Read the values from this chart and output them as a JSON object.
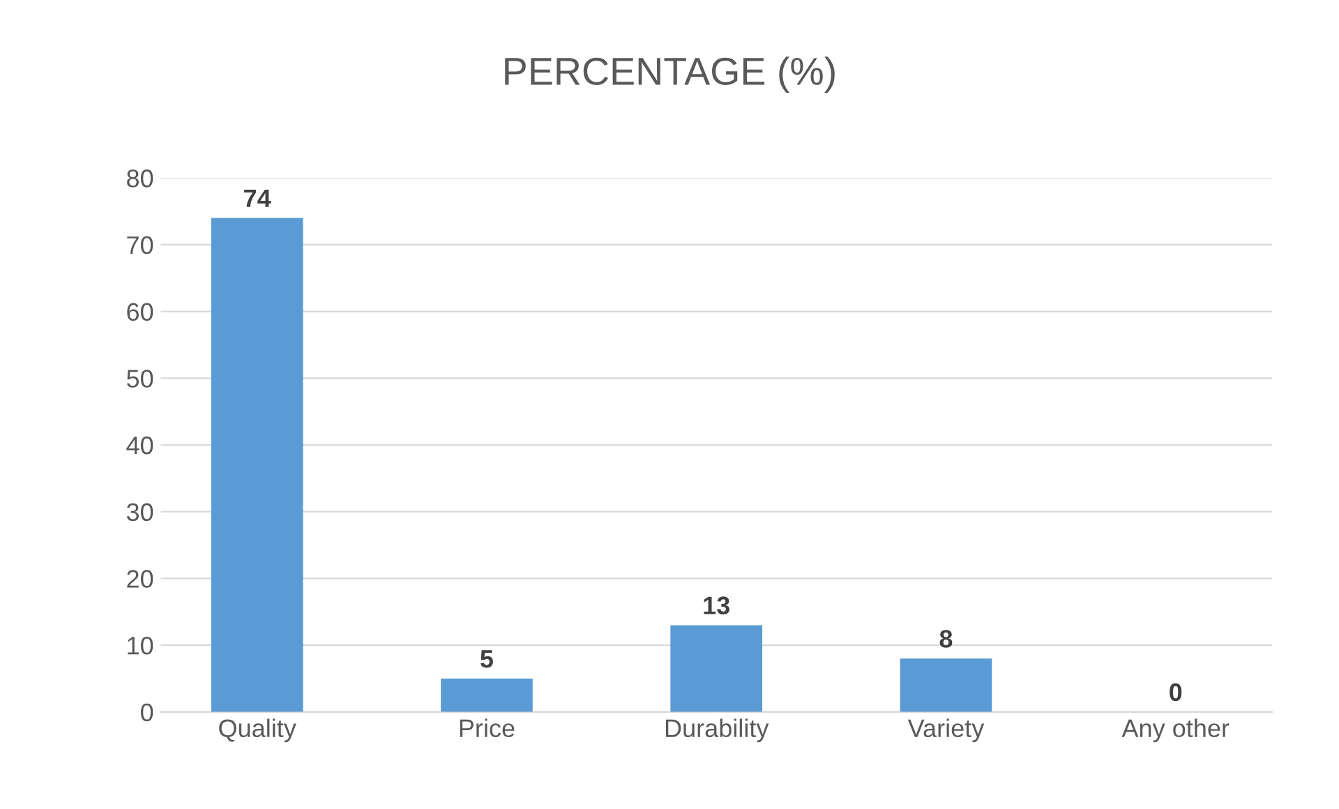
{
  "chart_data": {
    "type": "bar",
    "title": "PERCENTAGE (%)",
    "categories": [
      "Quality",
      "Price",
      "Durability",
      "Variety",
      "Any other"
    ],
    "values": [
      74,
      5,
      13,
      8,
      0
    ],
    "color": "#5b9bd5",
    "ylim": [
      0,
      80
    ],
    "yticks": [
      0,
      10,
      20,
      30,
      40,
      50,
      60,
      70,
      80
    ],
    "grid": "y",
    "data_labels": true
  }
}
